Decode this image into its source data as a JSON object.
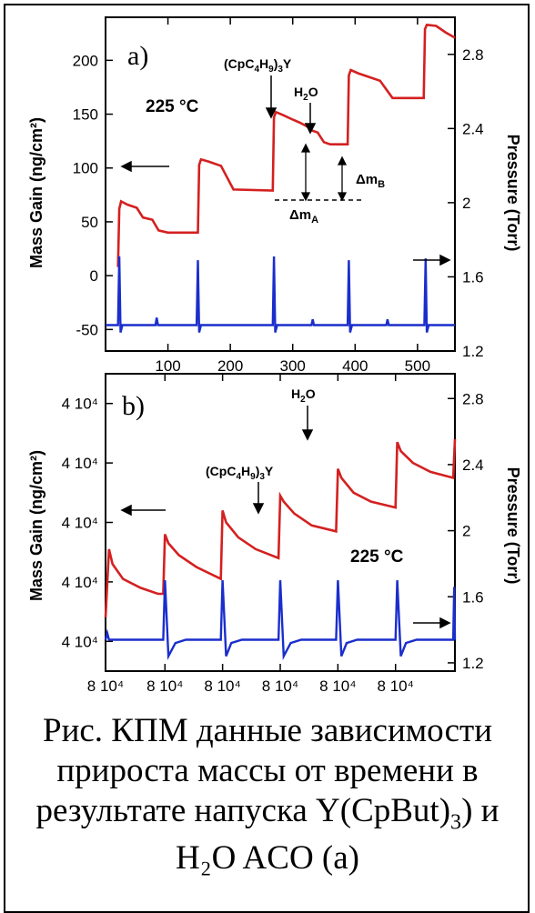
{
  "chart_data": [
    {
      "type": "line",
      "panel_label": "a)",
      "temperature_label": "225 °C",
      "ylabel_left": "Mass Gain (ng/cm²)",
      "ylabel_right": "Pressure (Torr)",
      "xlim": [
        0,
        560
      ],
      "ylim_left": [
        -70,
        240
      ],
      "ylim_right": [
        1.2,
        3.0
      ],
      "x_ticks": [
        "100",
        "200",
        "300",
        "400",
        "500"
      ],
      "y_left_ticks": [
        "-50",
        "0",
        "50",
        "100",
        "150",
        "200"
      ],
      "y_right_ticks": [
        "1.2",
        "1.6",
        "2",
        "2.4",
        "2.8"
      ],
      "annotations": {
        "precursor": "(CpC4H9)3Y",
        "water": "H2O",
        "dm_a": "ΔmA",
        "dm_b": "ΔmB"
      },
      "series": [
        {
          "color": "#d42020",
          "axis": "left",
          "x": [
            20,
            22,
            25,
            35,
            50,
            60,
            75,
            85,
            100,
            148,
            150,
            153,
            165,
            185,
            205,
            268,
            270,
            273,
            285,
            300,
            312,
            325,
            330,
            340,
            350,
            360,
            388,
            390,
            393,
            405,
            420,
            440,
            460,
            510,
            512,
            515,
            530,
            545,
            560
          ],
          "y": [
            8,
            62,
            69,
            66,
            63,
            54,
            52,
            42,
            40,
            40,
            103,
            108,
            106,
            102,
            80,
            79,
            147,
            152,
            149,
            145,
            142,
            138,
            135,
            133,
            124,
            122,
            122,
            186,
            191,
            188,
            185,
            181,
            165,
            165,
            229,
            233,
            232,
            226,
            221
          ]
        },
        {
          "color": "#1a2ecc",
          "axis": "right",
          "x": [
            0,
            20,
            22,
            24,
            27,
            30,
            80,
            82,
            84,
            140,
            146,
            148,
            150,
            153,
            156,
            265,
            268,
            270,
            272,
            275,
            278,
            320,
            330,
            332,
            334,
            385,
            388,
            390,
            392,
            395,
            398,
            450,
            452,
            454,
            508,
            511,
            513,
            515,
            518,
            521,
            560
          ],
          "y": [
            1.34,
            1.34,
            1.71,
            1.3,
            1.34,
            1.34,
            1.34,
            1.38,
            1.34,
            1.34,
            1.34,
            1.69,
            1.3,
            1.34,
            1.34,
            1.34,
            1.34,
            1.71,
            1.3,
            1.34,
            1.34,
            1.34,
            1.34,
            1.37,
            1.34,
            1.34,
            1.34,
            1.69,
            1.3,
            1.34,
            1.34,
            1.34,
            1.37,
            1.34,
            1.34,
            1.34,
            1.7,
            1.3,
            1.34,
            1.34,
            1.34
          ]
        }
      ]
    },
    {
      "type": "line",
      "panel_label": "b)",
      "temperature_label": "225 °C",
      "ylabel_left": "Mass Gain (ng/cm²)",
      "ylabel_right": "Pressure (Torr)",
      "xlim": [
        0,
        10
      ],
      "ylim_left": [
        0,
        10
      ],
      "ylim_right": [
        1.15,
        2.95
      ],
      "x_ticks": [
        "8 10⁴",
        "8 10⁴",
        "8 10⁴",
        "8 10⁴",
        "8 10⁴",
        "8 10⁴"
      ],
      "y_left_ticks": [
        "4 10⁴",
        "4 10⁴",
        "4 10⁴",
        "4 10⁴",
        "4 10⁴"
      ],
      "y_right_ticks": [
        "1.2",
        "1.6",
        "2",
        "2.4",
        "2.8"
      ],
      "annotations": {
        "precursor": "(CpC4H9)3Y",
        "water": "H2O"
      },
      "series": [
        {
          "color": "#d42020",
          "axis": "left",
          "x": [
            0,
            0.1,
            0.2,
            0.5,
            1,
            1.5,
            1.65,
            1.7,
            1.8,
            2.1,
            2.6,
            3.3,
            3.35,
            3.45,
            3.8,
            4.3,
            4.95,
            5.0,
            5.1,
            5.4,
            5.9,
            6.6,
            6.65,
            6.75,
            7.1,
            7.6,
            8.3,
            8.35,
            8.45,
            8.8,
            9.3,
            9.95,
            10
          ],
          "y": [
            1.8,
            4.1,
            3.6,
            3.1,
            2.8,
            2.6,
            2.6,
            4.6,
            4.3,
            3.9,
            3.5,
            3.1,
            5.4,
            5.0,
            4.5,
            4.1,
            3.8,
            5.9,
            5.7,
            5.3,
            4.9,
            4.7,
            6.8,
            6.5,
            6.0,
            5.7,
            5.5,
            7.7,
            7.4,
            7.0,
            6.7,
            6.5,
            7.8
          ]
        },
        {
          "color": "#1a2ecc",
          "axis": "right",
          "x": [
            0,
            0.05,
            0.1,
            0.2,
            1.5,
            1.65,
            1.7,
            1.8,
            2.0,
            2.3,
            3.3,
            3.35,
            3.45,
            3.6,
            3.9,
            4.95,
            5.0,
            5.1,
            5.3,
            5.6,
            6.6,
            6.65,
            6.75,
            6.9,
            7.2,
            8.3,
            8.35,
            8.45,
            8.6,
            8.9,
            9.95,
            9.98,
            10
          ],
          "y": [
            1.34,
            1.38,
            1.34,
            1.34,
            1.34,
            1.34,
            1.7,
            1.24,
            1.32,
            1.34,
            1.34,
            1.7,
            1.24,
            1.32,
            1.34,
            1.34,
            1.7,
            1.24,
            1.32,
            1.34,
            1.34,
            1.7,
            1.24,
            1.32,
            1.34,
            1.34,
            1.7,
            1.24,
            1.32,
            1.34,
            1.34,
            1.66,
            1.34
          ]
        }
      ]
    }
  ],
  "caption": {
    "line1": "Рис. КПМ данные зависимости",
    "line2": "прироста массы от времени в",
    "line3_prefix": "результате напуска Y(CpBut)",
    "line3_sub": "3",
    "line3_suffix": ") и",
    "line4": "H₂O                          ACO (a)"
  }
}
